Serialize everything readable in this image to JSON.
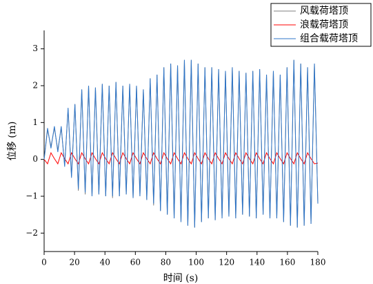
{
  "chart_data": {
    "type": "line",
    "xlabel": "时间 (s)",
    "ylabel": "位移 (m)",
    "xlim": [
      0,
      180
    ],
    "xticks": [
      0,
      20,
      40,
      60,
      80,
      100,
      120,
      140,
      160,
      180
    ],
    "ylim": [
      -2.5,
      3.5
    ],
    "yticks": [
      {
        "value": -2,
        "label": "−2"
      },
      {
        "value": -1,
        "label": "−1"
      },
      0,
      1,
      2,
      3
    ],
    "legend": "upper right",
    "grid": false,
    "x": [
      0,
      2.25,
      4.5,
      6.75,
      9,
      11.25,
      13.5,
      15.75,
      18,
      20.25,
      22.5,
      24.75,
      27,
      29.25,
      31.5,
      33.75,
      36,
      38.25,
      40.5,
      42.75,
      45,
      47.25,
      49.5,
      51.75,
      54,
      56.25,
      58.5,
      60.75,
      63,
      65.25,
      67.5,
      69.75,
      72,
      74.25,
      76.5,
      78.75,
      81,
      83.25,
      85.5,
      87.75,
      90,
      92.25,
      94.5,
      96.75,
      99,
      101.25,
      103.5,
      105.75,
      108,
      110.25,
      112.5,
      114.75,
      117,
      119.25,
      121.5,
      123.75,
      126,
      128.25,
      130.5,
      132.75,
      135,
      137.25,
      139.5,
      141.75,
      144,
      146.25,
      148.5,
      150.75,
      153,
      155.25,
      157.5,
      159.75,
      162,
      164.25,
      166.5,
      168.75,
      171,
      173.25,
      175.5,
      177.75,
      180
    ],
    "series": [
      {
        "name": "风载荷塔顶",
        "color": "#7f7f7f",
        "values": [
          0,
          0.8,
          0.35,
          0.85,
          0.25,
          0.85,
          -0.15,
          1.35,
          -0.45,
          1.5,
          -0.85,
          1.9,
          -0.95,
          2.0,
          -1.0,
          1.95,
          -0.95,
          2.05,
          -1.0,
          2.0,
          -1.05,
          2.1,
          -1.0,
          2.0,
          -0.95,
          2.05,
          -1.05,
          2.0,
          -1.0,
          1.9,
          -1.1,
          2.2,
          -1.25,
          2.3,
          -1.4,
          2.5,
          -1.5,
          2.6,
          -1.6,
          2.55,
          -1.7,
          2.7,
          -1.8,
          2.7,
          -1.85,
          2.6,
          -1.7,
          2.5,
          -1.6,
          2.5,
          -1.65,
          2.45,
          -1.6,
          2.4,
          -1.55,
          2.5,
          -1.6,
          2.4,
          -1.5,
          2.35,
          -1.55,
          2.4,
          -1.6,
          2.45,
          -1.5,
          2.3,
          -1.6,
          2.4,
          -1.6,
          2.3,
          -1.7,
          2.5,
          -1.8,
          2.7,
          -1.85,
          2.6,
          -1.8,
          2.5,
          -1.75,
          2.6,
          -1.2
        ]
      },
      {
        "name": "浪载荷塔顶",
        "color": "#ff0000",
        "values": [
          0,
          -0.12,
          0.18,
          0.02,
          -0.12,
          0.18,
          0.02,
          -0.12,
          0.18,
          0.02,
          -0.12,
          0.18,
          0.02,
          -0.12,
          0.18,
          0.02,
          -0.12,
          0.18,
          0.02,
          -0.12,
          0.18,
          0.02,
          -0.12,
          0.18,
          0.02,
          -0.12,
          0.18,
          0.02,
          -0.12,
          0.18,
          0.02,
          -0.12,
          0.18,
          0.02,
          -0.12,
          0.18,
          0.02,
          -0.12,
          0.18,
          0.02,
          -0.12,
          0.18,
          0.02,
          -0.12,
          0.18,
          0.02,
          -0.12,
          0.18,
          0.02,
          -0.12,
          0.18,
          0.02,
          -0.12,
          0.18,
          0.02,
          -0.12,
          0.18,
          0.02,
          -0.12,
          0.18,
          0.02,
          -0.12,
          0.18,
          0.02,
          -0.12,
          0.18,
          0.02,
          -0.12,
          0.18,
          0.02,
          -0.12,
          0.18,
          0.02,
          -0.12,
          0.18,
          0.02,
          -0.12,
          0.18,
          0.02,
          -0.12,
          -0.1
        ]
      },
      {
        "name": "组合载荷塔顶",
        "color": "#2e75c8",
        "values": [
          0,
          0.85,
          0.3,
          0.9,
          0.2,
          0.9,
          -0.2,
          1.4,
          -0.5,
          1.5,
          -0.8,
          1.9,
          -0.9,
          2.0,
          -1.0,
          1.95,
          -0.95,
          2.05,
          -1.0,
          2.0,
          -1.0,
          2.1,
          -1.0,
          2.0,
          -0.95,
          2.05,
          -1.05,
          2.0,
          -1.0,
          1.9,
          -1.1,
          2.2,
          -1.2,
          2.3,
          -1.4,
          2.5,
          -1.5,
          2.6,
          -1.6,
          2.55,
          -1.7,
          2.7,
          -1.8,
          2.7,
          -1.85,
          2.6,
          -1.7,
          2.5,
          -1.6,
          2.5,
          -1.65,
          2.45,
          -1.6,
          2.4,
          -1.55,
          2.5,
          -1.6,
          2.4,
          -1.5,
          2.35,
          -1.55,
          2.4,
          -1.6,
          2.45,
          -1.5,
          2.3,
          -1.6,
          2.4,
          -1.6,
          2.3,
          -1.7,
          2.5,
          -1.8,
          2.7,
          -1.85,
          2.6,
          -1.8,
          2.5,
          -1.75,
          2.6,
          -1.2
        ]
      }
    ]
  }
}
